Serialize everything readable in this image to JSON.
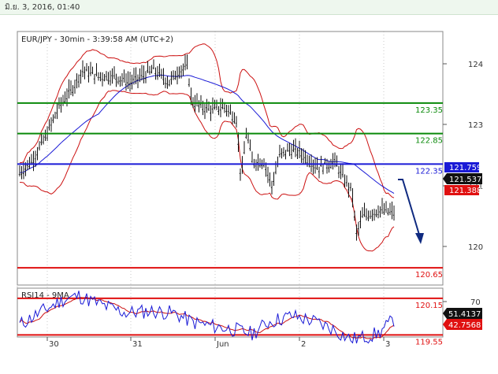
{
  "header": {
    "date_time": "มิ.ย. 3, 2016, 01:40"
  },
  "main_panel": {
    "title": "EUR/JPY - 30min - 3:39:58 AM (UTC+2)"
  },
  "price_axis": {
    "ticks": [
      "124",
      "123",
      "121",
      "120"
    ]
  },
  "levels": [
    {
      "label": "123.35",
      "value": 123.35,
      "color": "#0a8a0a"
    },
    {
      "label": "122.85",
      "value": 122.85,
      "color": "#0a8a0a"
    },
    {
      "label": "122.35",
      "value": 122.35,
      "color": "#1a1ad6"
    },
    {
      "label": "120.65",
      "value": 120.65,
      "color": "#e01010"
    },
    {
      "label": "120.15",
      "value": 120.15,
      "color": "#e01010"
    },
    {
      "label": "119.55",
      "value": 119.55,
      "color": "#e01010"
    }
  ],
  "price_boxes": [
    {
      "label": "121.759",
      "bg": "#1a1ad6"
    },
    {
      "label": "121.537",
      "bg": "#111111"
    },
    {
      "label": "121.388",
      "bg": "#e01010"
    }
  ],
  "rsi_panel": {
    "title": "RSI14 - 9MA",
    "ticks": [
      "70"
    ],
    "value_boxes": [
      {
        "label": "51.4137",
        "bg": "#111111"
      },
      {
        "label": "42.7568",
        "bg": "#e01010"
      }
    ]
  },
  "time_axis": {
    "labels": [
      "30",
      "31",
      "Jun",
      "2",
      "3"
    ]
  },
  "colors": {
    "price": "#111111",
    "bollinger": "#cc1111",
    "moving_average": "#1a1ad6",
    "arrow": "#0f2a80",
    "rsi": "#1a1ad6",
    "rsi_ma": "#cc1111"
  }
}
